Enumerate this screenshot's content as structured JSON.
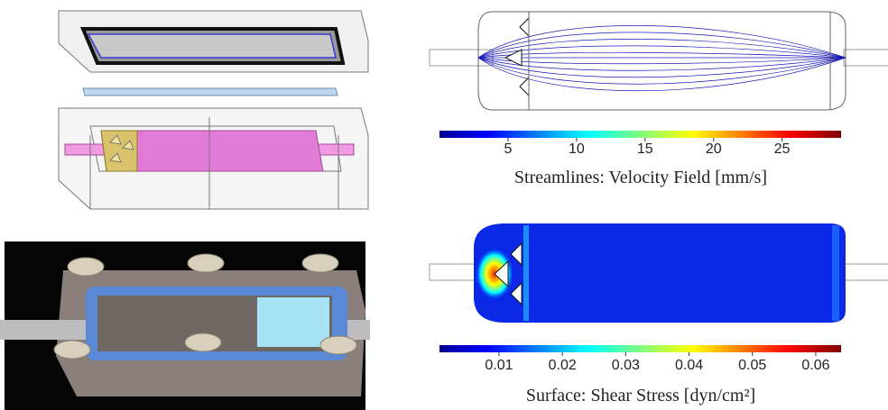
{
  "panels": {
    "velocity": {
      "colorbar": {
        "title": "Streamlines: Velocity Field [mm/s]",
        "lim": [
          0,
          29.3
        ],
        "ticks": [
          5,
          10,
          15,
          20,
          25
        ]
      }
    },
    "shear": {
      "colorbar": {
        "title": "Surface: Shear Stress [dyn/cm²]",
        "lim": [
          0.0006,
          0.064
        ],
        "ticks": [
          0.01,
          0.02,
          0.03,
          0.04,
          0.05,
          0.06
        ]
      }
    }
  }
}
